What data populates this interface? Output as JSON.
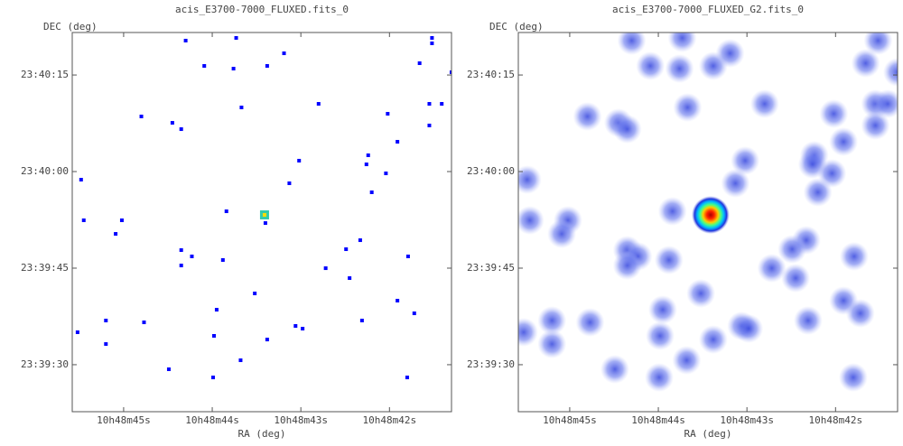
{
  "chart_data": [
    {
      "type": "scatter",
      "title": "acis_E3700-7000_FLUXED.fits_0",
      "x_label": "RA (deg)",
      "y_label": "DEC (deg)",
      "smoothed": false,
      "xlim": [
        45.58,
        41.3
      ],
      "ylim": [
        22.7,
        81.6
      ],
      "xticks": [
        {
          "value": 45,
          "label": "10h48m45s"
        },
        {
          "value": 44,
          "label": "10h48m44s"
        },
        {
          "value": 43,
          "label": "10h48m43s"
        },
        {
          "value": 42,
          "label": "10h48m42s"
        }
      ],
      "yticks": [
        {
          "value": 30,
          "label": "23:39:30"
        },
        {
          "value": 45,
          "label": "23:39:45"
        },
        {
          "value": 60,
          "label": "23:40:00"
        },
        {
          "value": 75,
          "label": "23:40:15"
        }
      ],
      "series": [
        {
          "color": "#0000ff",
          "x": [
            44.3,
            43.73,
            41.52,
            41.52,
            44.09,
            43.76,
            43.38,
            43.19,
            41.66,
            41.3,
            42.8,
            43.67,
            41.55,
            41.41,
            44.8,
            44.45,
            44.35,
            41.55,
            42.02,
            41.91,
            42.24,
            42.26,
            43.02,
            42.04,
            43.13,
            45.48,
            42.2,
            43.84,
            43.4,
            45.45,
            45.02,
            45.09,
            44.35,
            44.23,
            44.35,
            43.88,
            42.33,
            42.49,
            42.72,
            42.45,
            41.79,
            43.52,
            43.95,
            41.91,
            41.72,
            45.2,
            44.77,
            42.31,
            45.52,
            43.98,
            43.06,
            42.98,
            43.38,
            45.2,
            43.68,
            44.49,
            43.99,
            41.8
          ],
          "values": [
            80.34,
            80.76,
            80.76,
            79.92,
            76.41,
            75.99,
            76.41,
            78.37,
            76.83,
            75.43,
            70.52,
            69.96,
            70.52,
            70.52,
            68.56,
            67.57,
            66.59,
            67.16,
            68.98,
            64.63,
            62.53,
            61.12,
            61.69,
            59.72,
            58.18,
            58.74,
            56.78,
            53.83,
            52.0,
            52.43,
            52.43,
            50.32,
            47.8,
            46.82,
            45.41,
            46.26,
            49.34,
            47.94,
            44.99,
            43.45,
            46.82,
            41.07,
            38.54,
            39.95,
            37.98,
            36.86,
            36.58,
            36.86,
            35.04,
            34.48,
            36.02,
            35.6,
            33.91,
            33.21,
            30.69,
            29.29,
            28.02,
            28.02
          ]
        },
        {
          "color": "#ff0000",
          "x": [
            43.41
          ],
          "values": [
            53.27
          ]
        }
      ]
    },
    {
      "type": "scatter",
      "title": "acis_E3700-7000_FLUXED_G2.fits_0",
      "x_label": "RA (deg)",
      "y_label": "DEC (deg)",
      "smoothed": true,
      "xlim": [
        45.58,
        41.3
      ],
      "ylim": [
        22.7,
        81.6
      ],
      "xticks": [
        {
          "value": 45,
          "label": "10h48m45s"
        },
        {
          "value": 44,
          "label": "10h48m44s"
        },
        {
          "value": 43,
          "label": "10h48m43s"
        },
        {
          "value": 42,
          "label": "10h48m42s"
        }
      ],
      "yticks": [
        {
          "value": 30,
          "label": "23:39:30"
        },
        {
          "value": 45,
          "label": "23:39:45"
        },
        {
          "value": 60,
          "label": "23:40:00"
        },
        {
          "value": 75,
          "label": "23:40:15"
        }
      ],
      "series": [
        {
          "color": "#4455ee",
          "x": [
            44.3,
            43.73,
            41.52,
            44.09,
            43.76,
            43.38,
            43.19,
            41.66,
            41.3,
            43.67,
            42.8,
            41.55,
            41.41,
            44.8,
            44.45,
            44.35,
            41.55,
            42.02,
            41.91,
            42.24,
            42.26,
            43.02,
            42.04,
            43.13,
            45.48,
            42.2,
            43.84,
            45.45,
            45.02,
            45.09,
            44.35,
            44.23,
            44.35,
            43.88,
            42.33,
            42.49,
            42.72,
            42.45,
            41.79,
            43.52,
            43.95,
            41.91,
            41.72,
            45.2,
            44.77,
            42.31,
            45.52,
            43.98,
            43.06,
            42.98,
            43.38,
            45.2,
            43.68,
            44.49,
            43.99,
            41.8
          ],
          "values": [
            80.34,
            80.76,
            80.34,
            76.41,
            75.99,
            76.41,
            78.37,
            76.83,
            75.43,
            69.96,
            70.52,
            70.52,
            70.52,
            68.56,
            67.57,
            66.59,
            67.16,
            68.98,
            64.63,
            62.53,
            61.12,
            61.69,
            59.72,
            58.18,
            58.74,
            56.78,
            53.83,
            52.43,
            52.43,
            50.32,
            47.8,
            46.82,
            45.41,
            46.26,
            49.34,
            47.94,
            44.99,
            43.45,
            46.82,
            41.07,
            38.54,
            39.95,
            37.98,
            36.86,
            36.58,
            36.86,
            35.04,
            34.48,
            36.02,
            35.6,
            33.91,
            33.21,
            30.69,
            29.29,
            28.02,
            28.02
          ]
        },
        {
          "color": "#ff0000",
          "x": [
            43.41
          ],
          "values": [
            53.27
          ]
        }
      ]
    }
  ]
}
